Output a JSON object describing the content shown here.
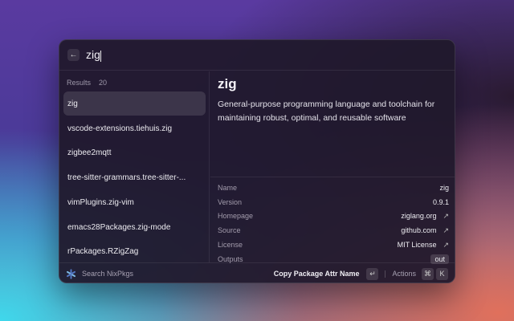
{
  "search": {
    "query": "zig",
    "back_icon": "arrow-left-icon"
  },
  "results": {
    "label": "Results",
    "count": "20",
    "items": [
      "zig",
      "vscode-extensions.tiehuis.zig",
      "zigbee2mqtt",
      "tree-sitter-grammars.tree-sitter-...",
      "vimPlugins.zig-vim",
      "emacs28Packages.zig-mode",
      "rPackages.RZigZag"
    ]
  },
  "detail": {
    "title": "zig",
    "description": "General-purpose programming language and toolchain for maintaining robust, optimal, and reusable software",
    "meta": [
      {
        "k": "Name",
        "v": "zig"
      },
      {
        "k": "Version",
        "v": "0.9.1"
      },
      {
        "k": "Homepage",
        "v": "ziglang.org",
        "link": true
      },
      {
        "k": "Source",
        "v": "github.com",
        "link": true
      },
      {
        "k": "License",
        "v": "MIT License",
        "link": true
      },
      {
        "k": "Outputs",
        "v": "out"
      }
    ]
  },
  "footer": {
    "name": "Search NixPkgs",
    "primary_action": "Copy Package Attr Name",
    "enter_key": "↵",
    "actions_label": "Actions",
    "cmd_key": "⌘",
    "k_key": "K"
  },
  "link_icon": "↗"
}
